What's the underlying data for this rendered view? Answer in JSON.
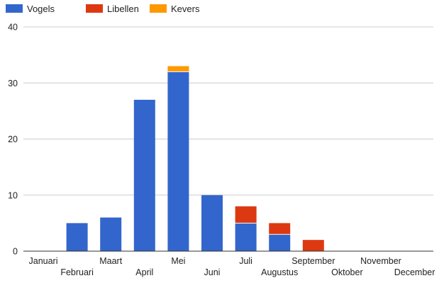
{
  "chart_data": {
    "type": "bar",
    "stacked": true,
    "categories": [
      "Januari",
      "Februari",
      "Maart",
      "April",
      "Mei",
      "Juni",
      "Juli",
      "Augustus",
      "September",
      "Oktober",
      "November",
      "December"
    ],
    "series": [
      {
        "name": "Vogels",
        "color": "#3366cc",
        "values": [
          0,
          5,
          6,
          27,
          32,
          10,
          5,
          3,
          0,
          0,
          0,
          0
        ]
      },
      {
        "name": "Libellen",
        "color": "#dc3912",
        "values": [
          0,
          0,
          0,
          0,
          0,
          0,
          3,
          2,
          2,
          0,
          0,
          0
        ]
      },
      {
        "name": "Kevers",
        "color": "#ff9900",
        "values": [
          0,
          0,
          0,
          0,
          1,
          0,
          0,
          0,
          0,
          0,
          0,
          0
        ]
      }
    ],
    "ylim": [
      0,
      40
    ],
    "yticks": [
      0,
      10,
      20,
      30,
      40
    ],
    "grid": true,
    "legend_position": "top-left",
    "title": "",
    "xlabel": "",
    "ylabel": ""
  }
}
